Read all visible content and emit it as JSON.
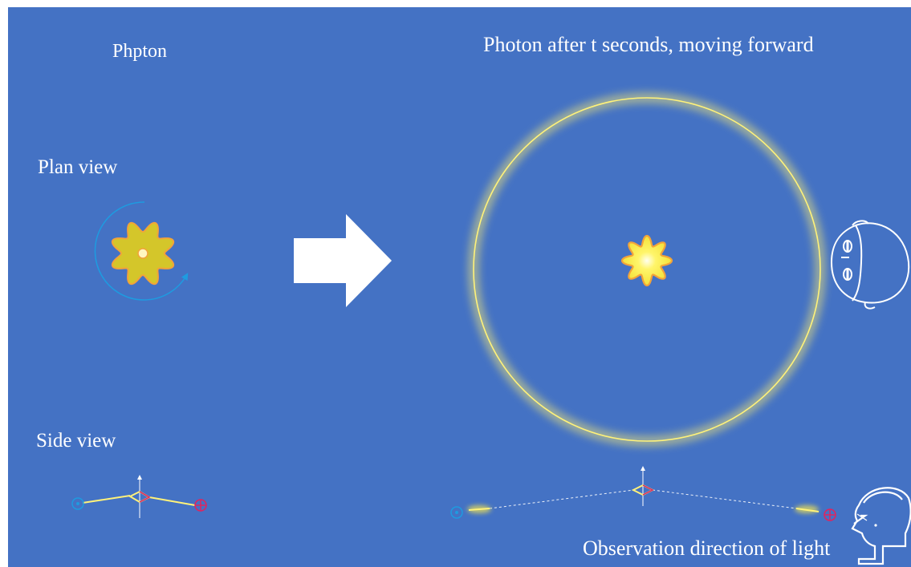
{
  "titles": {
    "left": "Phpton",
    "right": "Photon after t seconds, moving forward"
  },
  "labels": {
    "plan_view": "Plan view",
    "side_view": "Side view",
    "observation": "Observation direction of light"
  },
  "colors": {
    "background": "#4472C4",
    "photon_fill": "#D4C62A",
    "photon_stroke": "#F2A33A",
    "ring": "#FFF27A",
    "blue_marker": "#1E9BE0",
    "red_marker": "#E0245E",
    "arrow": "#FFFFFF"
  },
  "icons": [
    "star-photon-icon",
    "rotation-arrow-icon",
    "right-arrow-icon",
    "head-top-view-icon",
    "head-side-view-icon",
    "dot-in-circle-icon",
    "cross-in-circle-icon"
  ]
}
